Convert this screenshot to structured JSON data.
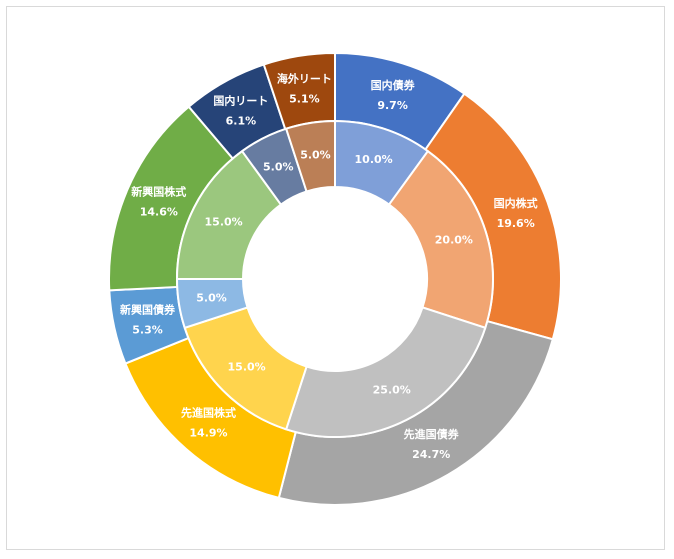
{
  "chart_data": {
    "type": "pie",
    "subtype": "nested-donut",
    "series": [
      {
        "ring": "outer",
        "slices": [
          {
            "name": "国内債券",
            "value": 9.7,
            "label": "9.7%",
            "color": "#4472C4"
          },
          {
            "name": "国内株式",
            "value": 19.6,
            "label": "19.6%",
            "color": "#ED7D31"
          },
          {
            "name": "先進国債券",
            "value": 24.7,
            "label": "24.7%",
            "color": "#A5A5A5"
          },
          {
            "name": "先進国株式",
            "value": 14.9,
            "label": "14.9%",
            "color": "#FFC000"
          },
          {
            "name": "新興国債券",
            "value": 5.3,
            "label": "5.3%",
            "color": "#5B9BD5"
          },
          {
            "name": "新興国株式",
            "value": 14.6,
            "label": "14.6%",
            "color": "#70AD47"
          },
          {
            "name": "国内リート",
            "value": 6.1,
            "label": "6.1%",
            "color": "#264478"
          },
          {
            "name": "海外リート",
            "value": 5.1,
            "label": "5.1%",
            "color": "#9E480E"
          }
        ]
      },
      {
        "ring": "inner",
        "slices": [
          {
            "name": "国内債券",
            "value": 10.0,
            "label": "10.0%",
            "color": "#7F9FD8"
          },
          {
            "name": "国内株式",
            "value": 20.0,
            "label": "20.0%",
            "color": "#F1A572"
          },
          {
            "name": "先進国債券",
            "value": 25.0,
            "label": "25.0%",
            "color": "#C0C0C0"
          },
          {
            "name": "先進国株式",
            "value": 15.0,
            "label": "15.0%",
            "color": "#FFD44D"
          },
          {
            "name": "新興国債券",
            "value": 5.0,
            "label": "5.0%",
            "color": "#8DB9E4"
          },
          {
            "name": "新興国株式",
            "value": 15.0,
            "label": "15.0%",
            "color": "#9BC77E"
          },
          {
            "name": "国内リート",
            "value": 5.0,
            "label": "5.0%",
            "color": "#677CA1"
          },
          {
            "name": "海外リート",
            "value": 5.0,
            "label": "5.0%",
            "color": "#BB7F56"
          }
        ]
      }
    ],
    "start_angle_deg": 0,
    "direction": "clockwise",
    "legend": "none"
  }
}
